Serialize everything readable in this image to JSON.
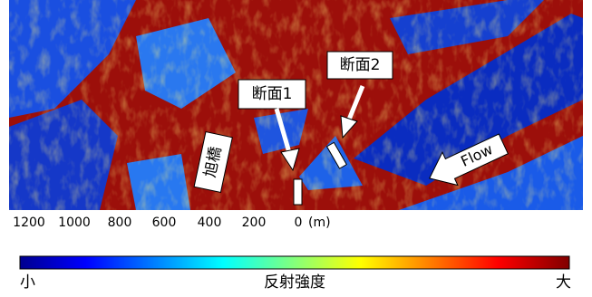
{
  "image": {
    "section_1": "断面1",
    "section_2": "断面2",
    "bridge": "旭橋",
    "flow": "Flow"
  },
  "distance_axis": {
    "ticks": [
      1200,
      1000,
      800,
      600,
      400,
      200,
      0
    ],
    "unit": "(m)"
  },
  "colorbar": {
    "low": "小",
    "title": "反射強度",
    "high": "大"
  }
}
